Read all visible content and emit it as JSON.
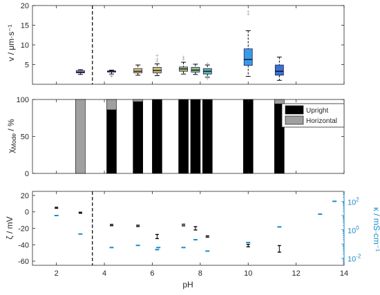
{
  "chart_data": [
    {
      "type": "box",
      "ylabel_main": "v / ",
      "ylabel_unit": "μm·s⁻¹",
      "xlim": [
        1,
        14
      ],
      "ylim": [
        0,
        20
      ],
      "yticks": [
        "5",
        "10",
        "15",
        "20"
      ],
      "ytick_values": [
        5,
        10,
        15,
        20
      ],
      "vline_x": 3.5,
      "boxes": [
        {
          "x": 3.0,
          "color": "#c8a0e0",
          "q1": 2.9,
          "median": 3.1,
          "q3": 3.5,
          "wmin": 2.5,
          "wmax": 3.7,
          "outliers": []
        },
        {
          "x": 4.3,
          "color": "#7080e0",
          "q1": 3.1,
          "median": 3.3,
          "q3": 3.4,
          "wmin": 2.6,
          "wmax": 3.6,
          "outliers": [
            2.2,
            2.0
          ]
        },
        {
          "x": 5.4,
          "color": "#d8c070",
          "q1": 2.9,
          "median": 3.3,
          "q3": 4.0,
          "wmin": 2.3,
          "wmax": 4.9,
          "outliers": []
        },
        {
          "x": 6.2,
          "color": "#c8c070",
          "q1": 2.9,
          "median": 3.5,
          "q3": 4.3,
          "wmin": 2.2,
          "wmax": 5.2,
          "outliers": [
            5.8,
            6.3,
            7.3
          ]
        },
        {
          "x": 7.3,
          "color": "#a8c070",
          "q1": 3.3,
          "median": 3.9,
          "q3": 4.4,
          "wmin": 2.6,
          "wmax": 5.6,
          "outliers": [
            6.3,
            6.8
          ]
        },
        {
          "x": 7.8,
          "color": "#88c088",
          "q1": 3.1,
          "median": 3.6,
          "q3": 4.3,
          "wmin": 2.5,
          "wmax": 5.1,
          "outliers": []
        },
        {
          "x": 8.3,
          "color": "#60b0a8",
          "q1": 2.6,
          "median": 3.3,
          "q3": 4.0,
          "wmin": 1.8,
          "wmax": 4.9,
          "outliers": [
            1.4,
            5.2
          ]
        },
        {
          "x": 10.0,
          "color": "#3a9ae8",
          "q1": 4.8,
          "median": 6.3,
          "q3": 9.0,
          "wmin": 2.0,
          "wmax": 13.6,
          "outliers": [
            17.8,
            18.4
          ]
        },
        {
          "x": 11.3,
          "color": "#3a70d0",
          "q1": 2.3,
          "median": 3.3,
          "q3": 4.9,
          "wmin": 1.0,
          "wmax": 6.9,
          "outliers": []
        }
      ]
    },
    {
      "type": "bar",
      "ylabel_pre": "χ",
      "ylabel_sub": "Mode",
      "ylabel_post": " / %",
      "xlim": [
        1,
        14
      ],
      "ylim": [
        0,
        100
      ],
      "yticks": [
        "0",
        "50",
        "100"
      ],
      "ytick_values": [
        0,
        50,
        100
      ],
      "legend": [
        {
          "label": "Upright",
          "color": "#000000"
        },
        {
          "label": "Horizontal",
          "color": "#a0a0a0"
        }
      ],
      "x": [
        3.0,
        4.3,
        5.4,
        6.2,
        7.3,
        7.8,
        8.3,
        10.0,
        11.3
      ],
      "series": [
        {
          "name": "Upright",
          "values": [
            0,
            86,
            97,
            100,
            100,
            100,
            100,
            100,
            94
          ]
        },
        {
          "name": "Horizontal",
          "values": [
            100,
            14,
            3,
            0,
            0,
            0,
            0,
            0,
            6
          ]
        }
      ]
    },
    {
      "type": "scatter",
      "ylabel_left": "ζ / mV",
      "ylabel_right": "κ / mS·cm⁻¹",
      "xlabel": "pH",
      "xlim": [
        1,
        14
      ],
      "xticks": [
        "2",
        "4",
        "6",
        "8",
        "10",
        "12",
        "14"
      ],
      "xtick_values": [
        2,
        4,
        6,
        8,
        10,
        12,
        14
      ],
      "ylim_left": [
        -65,
        25
      ],
      "yticks_left": [
        "20",
        "0",
        "-20",
        "-40",
        "-60"
      ],
      "ytick_values_left": [
        20,
        0,
        -20,
        -40,
        -60
      ],
      "yticks_right": [
        "10",
        "10",
        "10"
      ],
      "yticks_right_exp": [
        "2",
        "0",
        "-2"
      ],
      "ytick_right_exponents": [
        2,
        0,
        -2
      ],
      "ylim_right_log10": [
        -2.5,
        2.7
      ],
      "vline_x": 3.5,
      "right_axis_color": "#1a8ac8",
      "zeta": [
        {
          "x": 2.0,
          "y": 5,
          "err": 0.6
        },
        {
          "x": 3.0,
          "y": -1,
          "err": 0.6
        },
        {
          "x": 4.3,
          "y": -16,
          "err": 0.8
        },
        {
          "x": 5.4,
          "y": -17,
          "err": 0.8
        },
        {
          "x": 6.2,
          "y": -30,
          "err": 2.5
        },
        {
          "x": 7.3,
          "y": -16,
          "err": 1.0
        },
        {
          "x": 7.8,
          "y": -20,
          "err": 2.0
        },
        {
          "x": 8.3,
          "y": -30,
          "err": 0.8
        },
        {
          "x": 10.0,
          "y": -41,
          "err": 1.5
        },
        {
          "x": 11.3,
          "y": -45,
          "err": 4.0
        }
      ],
      "conductivity_log10": [
        {
          "x": 2.0,
          "y": 1.0
        },
        {
          "x": 3.0,
          "y": -0.3
        },
        {
          "x": 4.3,
          "y": -1.25
        },
        {
          "x": 5.4,
          "y": -1.1
        },
        {
          "x": 6.2,
          "y": -1.4
        },
        {
          "x": 6.25,
          "y": -1.25
        },
        {
          "x": 7.3,
          "y": -1.25
        },
        {
          "x": 7.8,
          "y": -0.7
        },
        {
          "x": 8.3,
          "y": -1.5
        },
        {
          "x": 10.0,
          "y": -0.9
        },
        {
          "x": 11.3,
          "y": 0.2
        },
        {
          "x": 13.0,
          "y": 1.1
        },
        {
          "x": 13.6,
          "y": 2.0
        }
      ]
    }
  ]
}
